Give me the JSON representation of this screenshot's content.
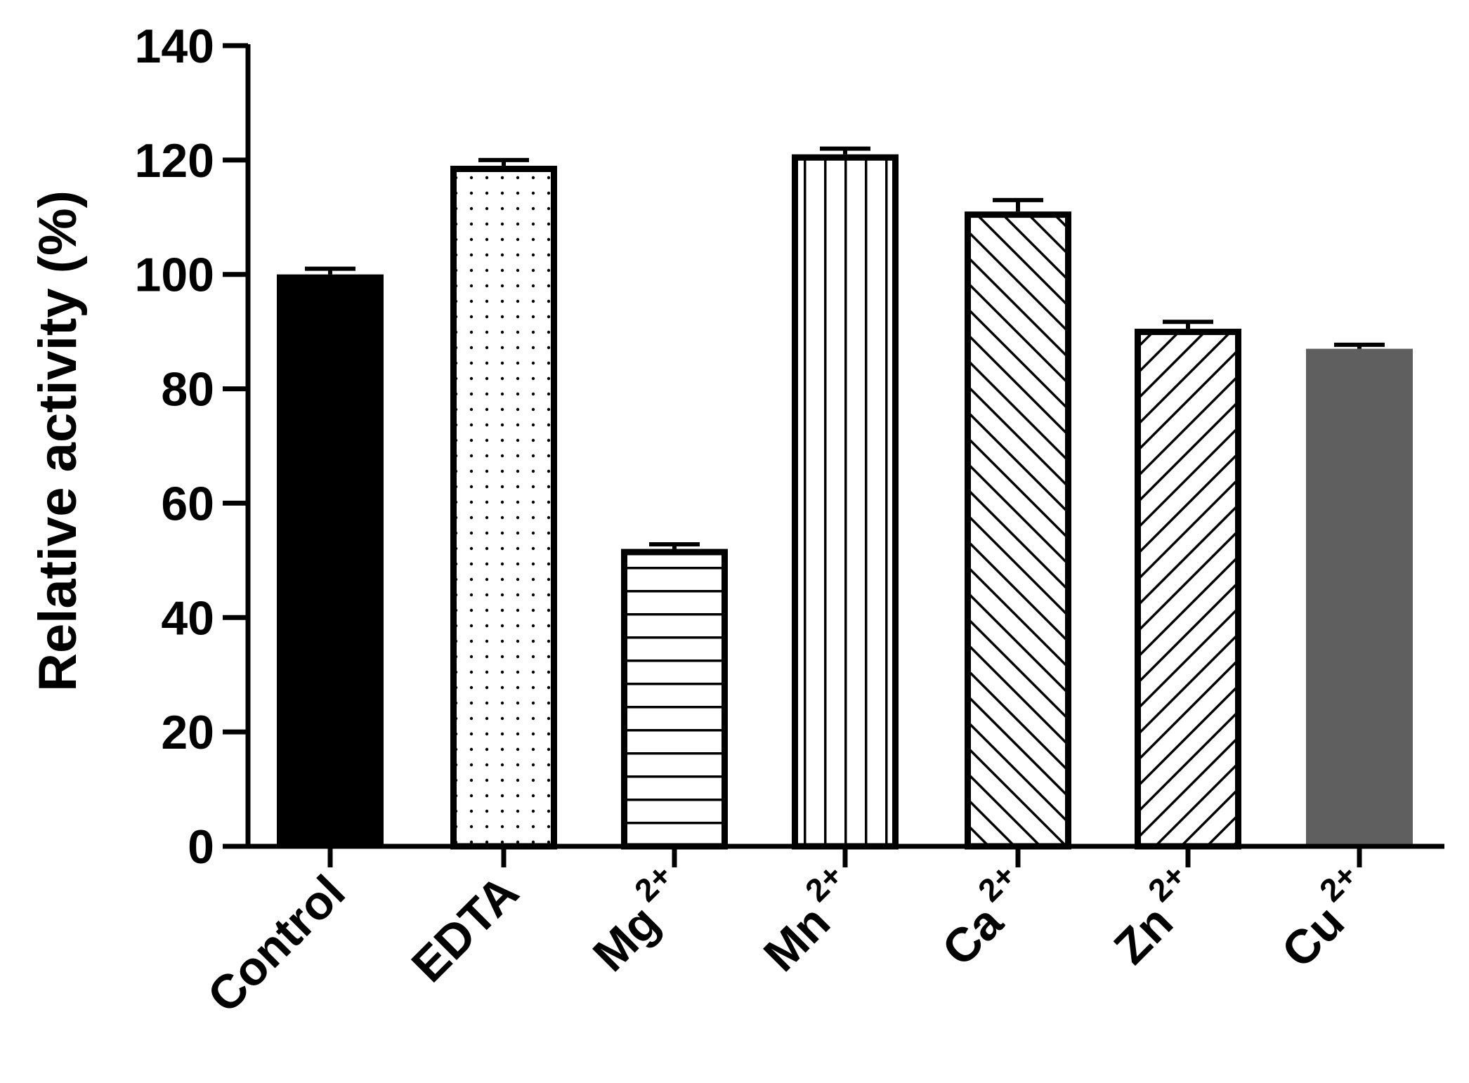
{
  "chart_data": {
    "type": "bar",
    "title": "",
    "xlabel": "",
    "ylabel": "Relative activity (%)",
    "ylim": [
      0,
      140
    ],
    "yticks": [
      0,
      20,
      40,
      60,
      80,
      100,
      120,
      140
    ],
    "grid": false,
    "legend": "none",
    "categories": [
      {
        "base": "Control",
        "sup": ""
      },
      {
        "base": "EDTA",
        "sup": ""
      },
      {
        "base": "Mg",
        "sup": "2+"
      },
      {
        "base": "Mn",
        "sup": "2+"
      },
      {
        "base": "Ca",
        "sup": "2+"
      },
      {
        "base": "Zn",
        "sup": "2+"
      },
      {
        "base": "Cu",
        "sup": "2+"
      }
    ],
    "values": [
      100,
      119,
      52,
      121,
      111,
      90.5,
      87
    ],
    "errors": [
      1,
      1,
      0.8,
      1,
      2,
      1.2,
      0.7
    ],
    "bar_styles": [
      {
        "fill": "solid",
        "color": "#000000"
      },
      {
        "fill": "dots",
        "color": "#000000"
      },
      {
        "fill": "horizontal-lines",
        "color": "#000000"
      },
      {
        "fill": "vertical-lines",
        "color": "#000000"
      },
      {
        "fill": "diagonal-up",
        "color": "#000000"
      },
      {
        "fill": "diagonal-down",
        "color": "#000000"
      },
      {
        "fill": "solid",
        "color": "#5f5f5f"
      }
    ]
  }
}
